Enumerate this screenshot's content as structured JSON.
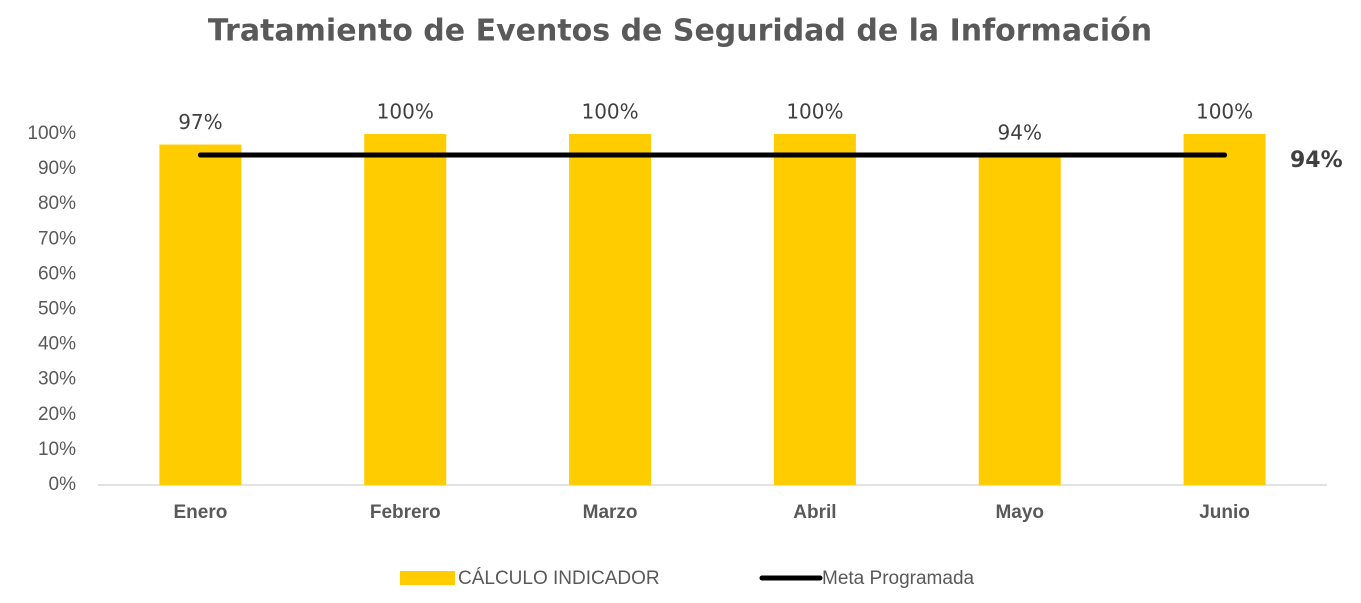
{
  "chart_data": {
    "type": "bar",
    "title": "Tratamiento de Eventos de Seguridad de la Información",
    "categories": [
      "Enero",
      "Febrero",
      "Marzo",
      "Abril",
      "Mayo",
      "Junio"
    ],
    "series": [
      {
        "name": "CÁLCULO INDICADOR",
        "type": "bar",
        "color": "#FFCC00",
        "values": [
          97,
          100,
          100,
          100,
          94,
          100
        ],
        "value_labels": [
          "97%",
          "100%",
          "100%",
          "100%",
          "94%",
          "100%"
        ]
      },
      {
        "name": "Meta Programada",
        "type": "line",
        "color": "#000000",
        "values": [
          94,
          94,
          94,
          94,
          94,
          94
        ],
        "value_labels": [
          null,
          null,
          null,
          null,
          null,
          "94%"
        ]
      }
    ],
    "ylim": [
      0,
      100
    ],
    "yticks": [
      {
        "value": 0,
        "label": "0%"
      },
      {
        "value": 10,
        "label": "10%"
      },
      {
        "value": 20,
        "label": "20%"
      },
      {
        "value": 30,
        "label": "30%"
      },
      {
        "value": 40,
        "label": "40%"
      },
      {
        "value": 50,
        "label": "50%"
      },
      {
        "value": 60,
        "label": "60%"
      },
      {
        "value": 70,
        "label": "70%"
      },
      {
        "value": 80,
        "label": "80%"
      },
      {
        "value": 90,
        "label": "90%"
      },
      {
        "value": 100,
        "label": "100%"
      }
    ],
    "grid": false,
    "legend": "bottom"
  }
}
